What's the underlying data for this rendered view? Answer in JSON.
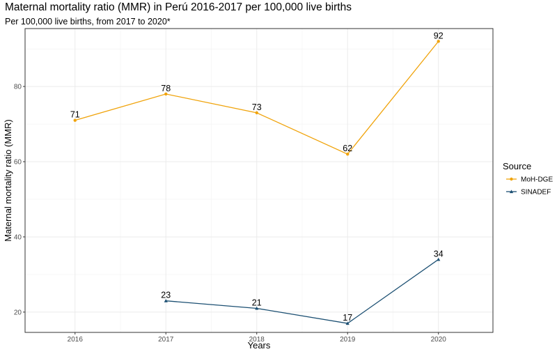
{
  "title": "Maternal mortality ratio (MMR) in Perú 2016-2017 per 100,000 live births",
  "subtitle": "Per 100,000 live births, from 2017 to 2020*",
  "chart_data": {
    "type": "line",
    "title": "Maternal mortality ratio (MMR) in Perú 2016-2017 per 100,000 live births",
    "subtitle": "Per 100,000 live births, from 2017 to 2020*",
    "xlabel": "Years",
    "ylabel": "Maternal mortality ratio (MMR)",
    "x": [
      "2016",
      "2017",
      "2018",
      "2019",
      "2020"
    ],
    "xlim": [
      2015.45,
      2020.6
    ],
    "ylim": [
      14.6,
      95.4
    ],
    "y_ticks": [
      20,
      40,
      60,
      80
    ],
    "grid": true,
    "legend": {
      "title": "Source",
      "position": "right"
    },
    "series": [
      {
        "name": "MoH-DGE",
        "color": "#f0a30a",
        "marker": "circle",
        "x": [
          2016,
          2017,
          2018,
          2019,
          2020
        ],
        "values": [
          71,
          78,
          73,
          62,
          92
        ],
        "labels": [
          "71",
          "78",
          "73",
          "62",
          "92"
        ]
      },
      {
        "name": "SINADEF",
        "color": "#1b4f72",
        "marker": "triangle",
        "x": [
          2017,
          2018,
          2019,
          2020
        ],
        "values": [
          23,
          21,
          17,
          34
        ],
        "labels": [
          "23",
          "21",
          "17",
          "34"
        ]
      }
    ]
  }
}
